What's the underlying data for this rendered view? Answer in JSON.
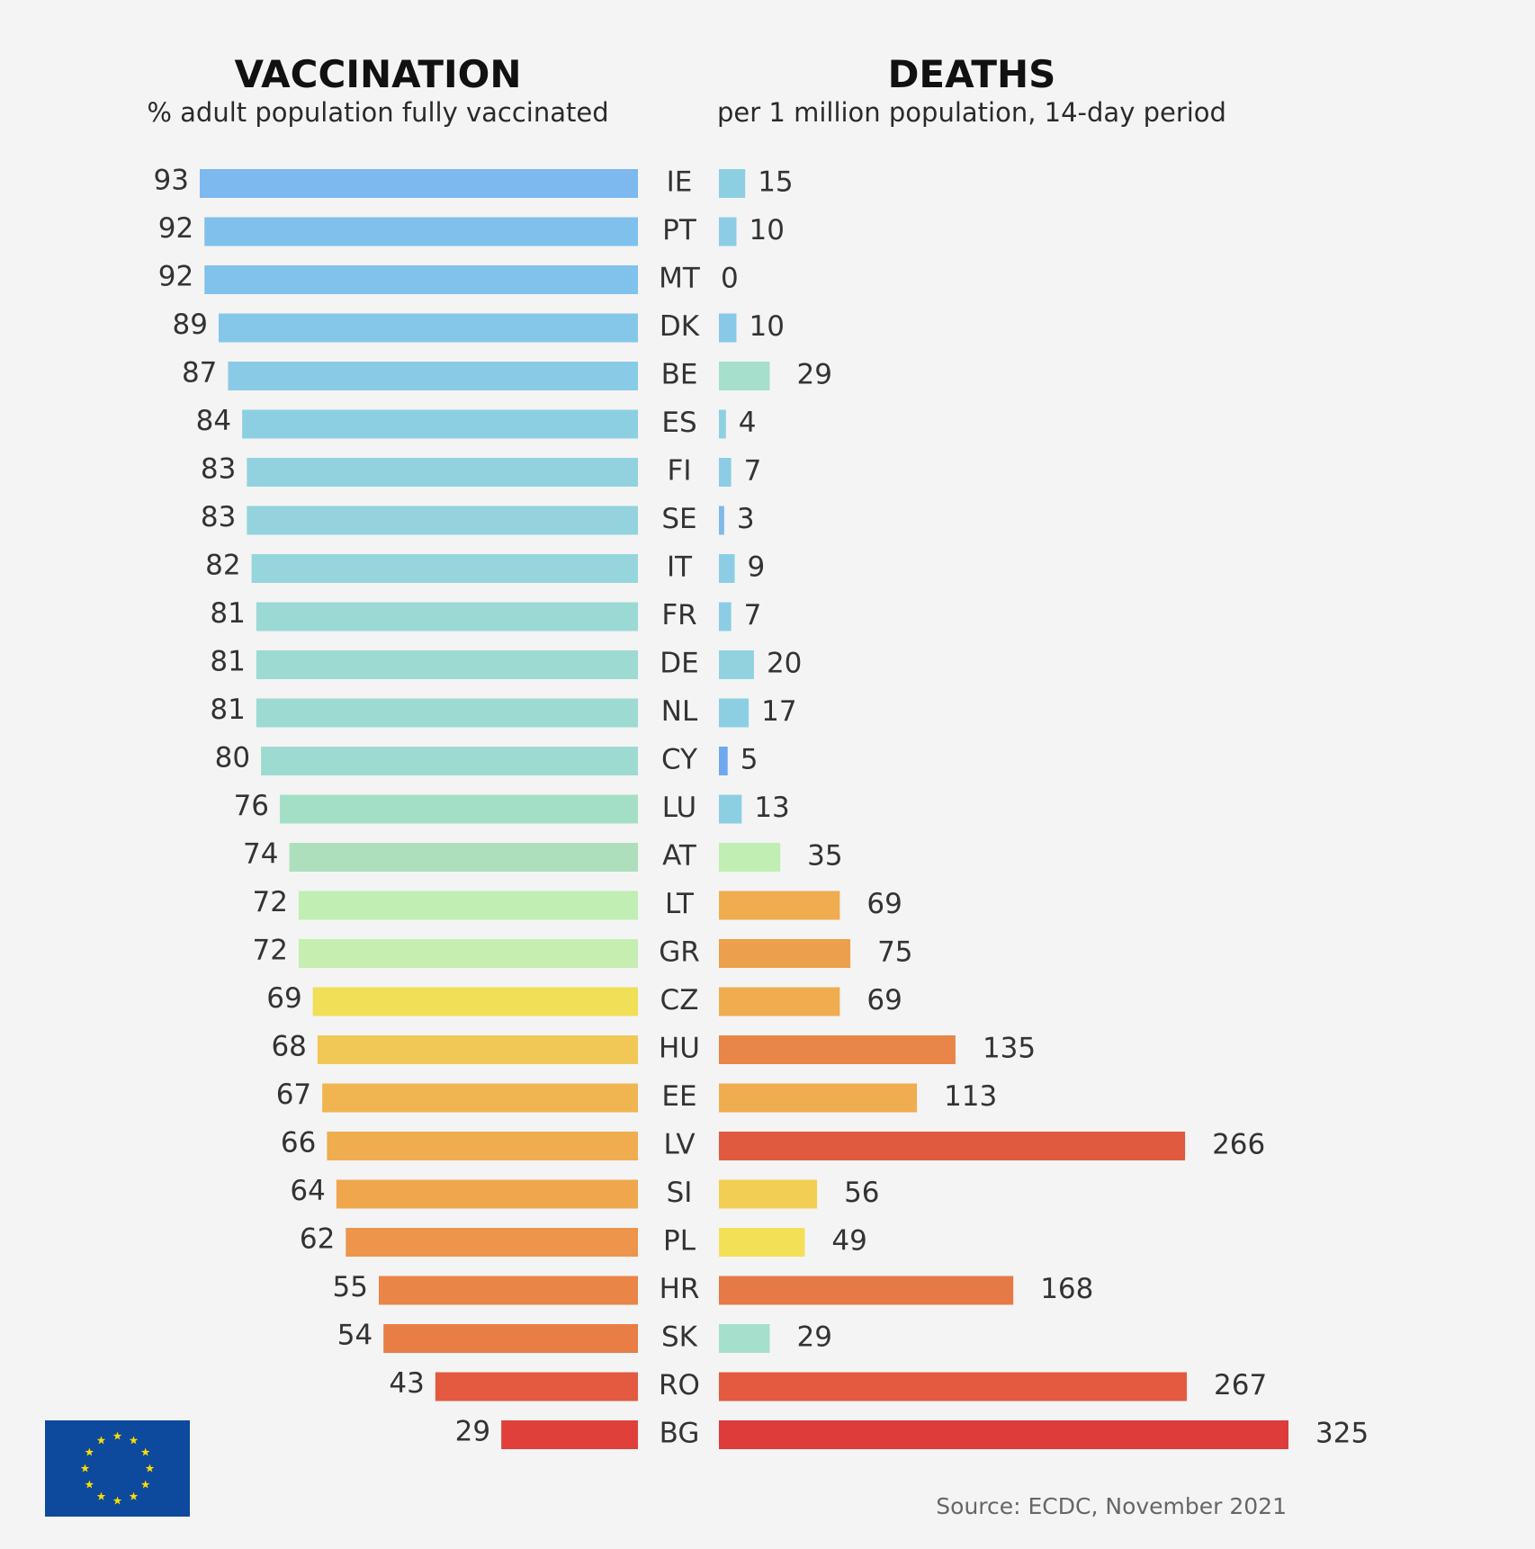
{
  "colors": {
    "background": "#f4f4f4",
    "flag_blue": "#0d4a9e",
    "flag_star": "#ffdd00"
  },
  "eu_flag": {
    "icon": "eu-flag-icon"
  },
  "source": "Source: ECDC, November 2021",
  "chart_data": [
    {
      "type": "bar",
      "orientation": "horizontal",
      "title": "VACCINATION",
      "subtitle": "% adult population fully vaccinated",
      "direction": "right-to-left",
      "xlim": [
        0,
        93
      ],
      "categories": [
        "IE",
        "PT",
        "MT",
        "DK",
        "BE",
        "ES",
        "FI",
        "SE",
        "IT",
        "FR",
        "DE",
        "NL",
        "CY",
        "LU",
        "AT",
        "LT",
        "GR",
        "CZ",
        "HU",
        "EE",
        "LV",
        "SI",
        "PL",
        "HR",
        "SK",
        "RO",
        "BG"
      ],
      "values": [
        93,
        92,
        92,
        89,
        87,
        84,
        83,
        83,
        82,
        81,
        81,
        81,
        80,
        76,
        74,
        72,
        72,
        69,
        68,
        67,
        66,
        64,
        62,
        55,
        54,
        43,
        29
      ],
      "colors": [
        "#7db8ef",
        "#7fc0ec",
        "#80c2eb",
        "#85c7e8",
        "#89cbe6",
        "#8dcfe2",
        "#92d2df",
        "#94d3de",
        "#96d5dc",
        "#9bd9d4",
        "#9cdad2",
        "#9cdad2",
        "#9ddbd0",
        "#a3dfc6",
        "#addfbd",
        "#c1eeb2",
        "#c6eeb0",
        "#f0df57",
        "#f1c855",
        "#f0b551",
        "#efad4f",
        "#efa64d",
        "#ec954b",
        "#ea8548",
        "#e87d46",
        "#e35a40",
        "#e0403a"
      ],
      "grid": false
    },
    {
      "type": "bar",
      "orientation": "horizontal",
      "title": "DEATHS",
      "subtitle": "per 1 million population, 14-day period",
      "direction": "left-to-right",
      "xlim": [
        0,
        325
      ],
      "categories": [
        "IE",
        "PT",
        "MT",
        "DK",
        "BE",
        "ES",
        "FI",
        "SE",
        "IT",
        "FR",
        "DE",
        "NL",
        "CY",
        "LU",
        "AT",
        "LT",
        "GR",
        "CZ",
        "HU",
        "EE",
        "LV",
        "SI",
        "PL",
        "HR",
        "SK",
        "RO",
        "BG"
      ],
      "values": [
        15,
        10,
        0,
        10,
        29,
        4,
        7,
        3,
        9,
        7,
        20,
        17,
        5,
        13,
        35,
        69,
        75,
        69,
        135,
        113,
        266,
        56,
        49,
        168,
        29,
        267,
        325
      ],
      "colors": [
        "#8dcfe2",
        "#8ccde5",
        "#8ccde5",
        "#87c9e6",
        "#a6dfcc",
        "#8fd0e0",
        "#8ccde5",
        "#7fb9ea",
        "#8ccde5",
        "#8ccde5",
        "#92d2df",
        "#8dcfe2",
        "#6fa8ef",
        "#8dcfe2",
        "#c1eeb2",
        "#efad4f",
        "#ec9f4c",
        "#efad4f",
        "#e8864a",
        "#efad4f",
        "#e05a40",
        "#f3ce55",
        "#f3e057",
        "#e57a46",
        "#a6dfcc",
        "#e35a40",
        "#dd3c3a"
      ],
      "grid": false
    }
  ]
}
